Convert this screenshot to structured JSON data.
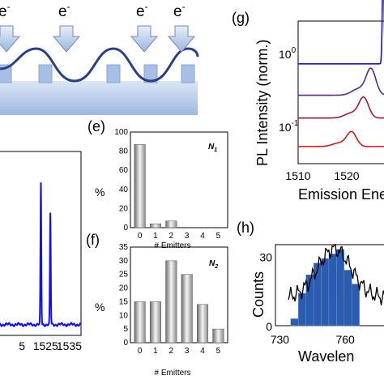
{
  "panel_top": {
    "electron_label": "e",
    "electron_superscript": "-",
    "arrow_count": 4
  },
  "chart_data": [
    {
      "id": "d",
      "type": "line",
      "x_ticks": [
        "5",
        "1525",
        "1535"
      ],
      "series": [
        {
          "color": "#1010ff",
          "peaks": [
            {
              "x": 1523,
              "height": 0.8
            },
            {
              "x": 1527,
              "height": 0.63
            }
          ]
        }
      ]
    },
    {
      "id": "e",
      "panel_label": "(e)",
      "type": "bar",
      "annotation": "N",
      "annotation_sub": "1",
      "ylabel": "%",
      "xlabel": "# Emitters",
      "categories": [
        "0",
        "1",
        "2",
        "3",
        "4",
        "5"
      ],
      "values": [
        87,
        4,
        7,
        0,
        0,
        0
      ],
      "ylim": [
        0,
        100
      ],
      "y_ticks": [
        "0",
        "20",
        "40",
        "60",
        "80",
        "100"
      ]
    },
    {
      "id": "f",
      "panel_label": "(f)",
      "type": "bar",
      "annotation": "N",
      "annotation_sub": "2",
      "ylabel": "%",
      "xlabel": "# Emitters",
      "categories": [
        "0",
        "1",
        "2",
        "3",
        "4",
        "5"
      ],
      "values": [
        15,
        15,
        30,
        25,
        14,
        5
      ],
      "ylim": [
        0,
        35
      ],
      "y_ticks": [
        "0",
        "5",
        "10",
        "15",
        "20",
        "25",
        "30",
        "35"
      ]
    },
    {
      "id": "g",
      "panel_label": "(g)",
      "type": "line",
      "ylabel": "PL Intensity (norm.)",
      "xlabel": "Emission Ene",
      "x_ticks": [
        "1510",
        "1520",
        "15"
      ],
      "y_ticks": [
        "10",
        "10"
      ],
      "y_tick_exps": [
        "0",
        "-1"
      ],
      "scale": "log",
      "series": [
        {
          "color": "#1515c0",
          "baseline": 0.3,
          "peak_x": 1527.5,
          "peak": 0.72
        },
        {
          "color": "#5a2a8a",
          "baseline": 0.52,
          "peak_x": 1525.0,
          "peak": 0.18
        },
        {
          "color": "#a01a3a",
          "baseline": 0.68,
          "peak_x": 1523.5,
          "peak": 0.14
        },
        {
          "color": "#d01a1a",
          "baseline": 0.88,
          "peak_x": 1521.0,
          "peak": 0.1
        }
      ]
    },
    {
      "id": "h",
      "panel_label": "(h)",
      "type": "bar",
      "ylabel": "Counts",
      "xlabel": "Wavelen",
      "x_ticks": [
        "730",
        "760"
      ],
      "y_ticks": [
        "0",
        "30"
      ],
      "ylim": [
        0,
        35
      ],
      "bar_color": "#2a5db0",
      "bins": [
        735,
        738.5,
        742,
        745.5,
        749,
        752.5,
        756,
        759.5,
        763
      ],
      "values": [
        3,
        14,
        22,
        27,
        29,
        31,
        33,
        24,
        18
      ]
    }
  ]
}
